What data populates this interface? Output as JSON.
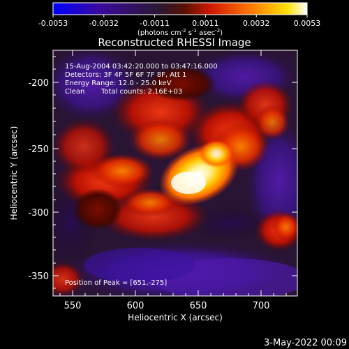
{
  "colorbar": {
    "ticks": [
      "-0.0053",
      "-0.0032",
      "-0.0011",
      "0.0011",
      "0.0032",
      "0.0053"
    ],
    "units_main": "(photons cm",
    "units_exp1": "-2",
    "units_mid": " s",
    "units_exp2": "-1",
    "units_end": " asec",
    "units_exp3": "-2",
    "units_close": ")"
  },
  "title": "Reconstructed RHESSI Image",
  "info": {
    "time_range": "15-Aug-2004 03:42:20.000 to 03:47:16.000",
    "detectors": "Detectors: 3F 4F 5F 6F 7F 8F, Att 1",
    "energy": "Energy Range: 12.0 - 25.0 keV",
    "clean_label": "Clean",
    "total_counts": "Total counts: 2.16E+03",
    "peak": "Position of Peak = [651,-275]"
  },
  "axes": {
    "xlabel": "Heliocentric X (arcsec)",
    "ylabel": "Heliocentric Y (arcsec)",
    "xticks": [
      "550",
      "600",
      "650",
      "700"
    ],
    "yticks": [
      "-200",
      "-250",
      "-300",
      "-350"
    ]
  },
  "footer_date": "3-May-2022 00:09",
  "colors": {
    "background": "#000000",
    "colormap": [
      "#0000ff",
      "#3a0aa0",
      "#2a1830",
      "#3a0f00",
      "#d01800",
      "#ff7a00",
      "#ffe000",
      "#ffffff"
    ]
  }
}
